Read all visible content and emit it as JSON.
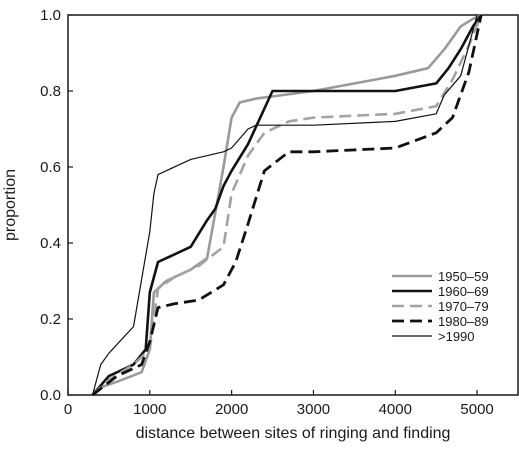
{
  "chart_data": {
    "type": "line",
    "title": "",
    "xlabel": "distance between sites of ringing and finding",
    "ylabel": "proportion",
    "xlim": [
      0,
      5500
    ],
    "ylim": [
      0.0,
      1.0
    ],
    "x_ticks": [
      0,
      1000,
      2000,
      3000,
      4000,
      5000
    ],
    "x_tick_labels": [
      "0",
      "1000",
      "2000",
      "3000",
      "4000",
      "5000"
    ],
    "y_ticks": [
      0.0,
      0.2,
      0.4,
      0.6,
      0.8,
      1.0
    ],
    "y_tick_labels": [
      "0.0",
      "0.2",
      "0.4",
      "0.6",
      "0.8",
      "1.0"
    ],
    "grid": false,
    "legend_position": "bottom-right",
    "series": [
      {
        "name": "1950–59",
        "color": "#9a9a9a",
        "style": "solid-thick",
        "x": [
          300,
          400,
          600,
          900,
          1000,
          1050,
          1200,
          1500,
          1700,
          1900,
          2000,
          2100,
          2300,
          3000,
          4000,
          4400,
          4600,
          4800,
          4950,
          5050
        ],
        "y": [
          0.0,
          0.02,
          0.035,
          0.06,
          0.12,
          0.27,
          0.3,
          0.33,
          0.36,
          0.6,
          0.73,
          0.77,
          0.78,
          0.8,
          0.84,
          0.86,
          0.91,
          0.97,
          0.99,
          1.0
        ]
      },
      {
        "name": "1960–69",
        "color": "#111111",
        "style": "solid-thick",
        "x": [
          300,
          500,
          800,
          950,
          1000,
          1100,
          1300,
          1500,
          1700,
          1800,
          1900,
          2000,
          2200,
          2500,
          3000,
          4000,
          4500,
          4650,
          4800,
          4950,
          5050
        ],
        "y": [
          0.0,
          0.05,
          0.08,
          0.12,
          0.27,
          0.35,
          0.37,
          0.39,
          0.46,
          0.49,
          0.55,
          0.59,
          0.66,
          0.8,
          0.8,
          0.8,
          0.82,
          0.86,
          0.91,
          0.97,
          1.0
        ]
      },
      {
        "name": "1970–79",
        "color": "#a3a3a3",
        "style": "dashed",
        "x": [
          300,
          500,
          800,
          1000,
          1100,
          1300,
          1600,
          1900,
          2000,
          2200,
          2400,
          2700,
          3000,
          4000,
          4500,
          4700,
          4900,
          5050
        ],
        "y": [
          0.0,
          0.04,
          0.08,
          0.12,
          0.28,
          0.31,
          0.34,
          0.39,
          0.53,
          0.63,
          0.69,
          0.72,
          0.73,
          0.74,
          0.76,
          0.83,
          0.92,
          1.0
        ]
      },
      {
        "name": "1980–89",
        "color": "#111111",
        "style": "dashed-thick",
        "x": [
          300,
          600,
          900,
          1000,
          1100,
          1300,
          1600,
          1900,
          2050,
          2200,
          2400,
          2700,
          3000,
          4000,
          4500,
          4700,
          4900,
          5050
        ],
        "y": [
          0.0,
          0.05,
          0.08,
          0.14,
          0.23,
          0.24,
          0.25,
          0.29,
          0.35,
          0.45,
          0.59,
          0.64,
          0.64,
          0.65,
          0.69,
          0.73,
          0.85,
          1.0
        ]
      },
      {
        "name": ">1990",
        "color": "#111111",
        "style": "solid-thin",
        "x": [
          300,
          400,
          500,
          800,
          1000,
          1050,
          1100,
          1500,
          1900,
          2000,
          2200,
          2300,
          3000,
          4000,
          4500,
          4600,
          4800,
          5000
        ],
        "y": [
          0.0,
          0.08,
          0.11,
          0.18,
          0.43,
          0.53,
          0.58,
          0.62,
          0.64,
          0.65,
          0.7,
          0.71,
          0.71,
          0.72,
          0.74,
          0.79,
          0.84,
          1.0
        ]
      }
    ]
  }
}
